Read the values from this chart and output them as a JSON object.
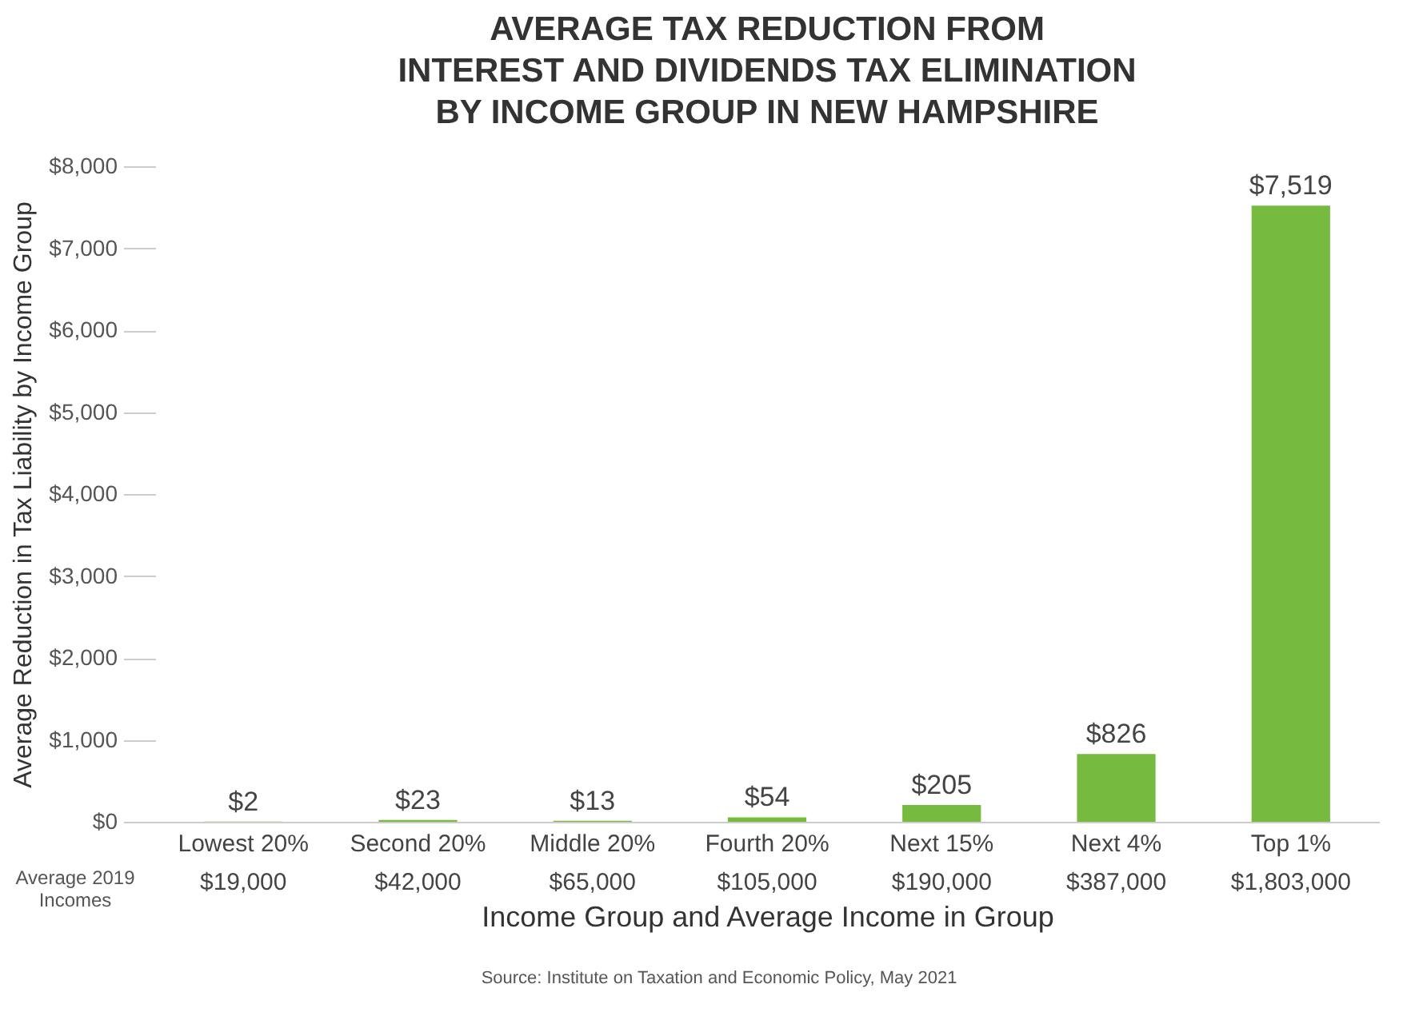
{
  "chart_data": {
    "type": "bar",
    "title": [
      "AVERAGE TAX REDUCTION FROM",
      "INTEREST AND DIVIDENDS TAX ELIMINATION",
      "BY INCOME GROUP IN NEW HAMPSHIRE"
    ],
    "categories": [
      "Lowest 20%\n$19,000",
      "Second 20%\n$42,000",
      "Middle 20%\n$65,000",
      "Fourth 20%\n$105,000",
      "Next 15%\n$190,000",
      "Next 4%\n$387,000",
      "Top 1%\n$1,803,000"
    ],
    "values": [
      2,
      23,
      13,
      54,
      205,
      826,
      7519
    ],
    "value_labels": [
      "$2",
      "$23",
      "$13",
      "$54",
      "$205",
      "$826",
      "$7,519"
    ],
    "color": "#76bb40",
    "xlabel": "Income Group and Average Income in Group",
    "ylabel": "Average Reduction in Tax Liability by Income Group",
    "ylim": [
      0,
      8000
    ],
    "yticks": [
      {
        "value": 0,
        "label": "$0"
      },
      {
        "value": 1000,
        "label": "$1,000"
      },
      {
        "value": 2000,
        "label": "$2,000"
      },
      {
        "value": 3000,
        "label": "$3,000"
      },
      {
        "value": 4000,
        "label": "$4,000"
      },
      {
        "value": 5000,
        "label": "$5,000"
      },
      {
        "value": 6000,
        "label": "$6,000"
      },
      {
        "value": 7000,
        "label": "$7,000"
      },
      {
        "value": 8000,
        "label": "$8,000"
      }
    ],
    "annotations": [
      "Average 2019\nIncomes",
      "Source: Institute on Taxation and Economic Policy, May 2021"
    ],
    "grid": false
  }
}
